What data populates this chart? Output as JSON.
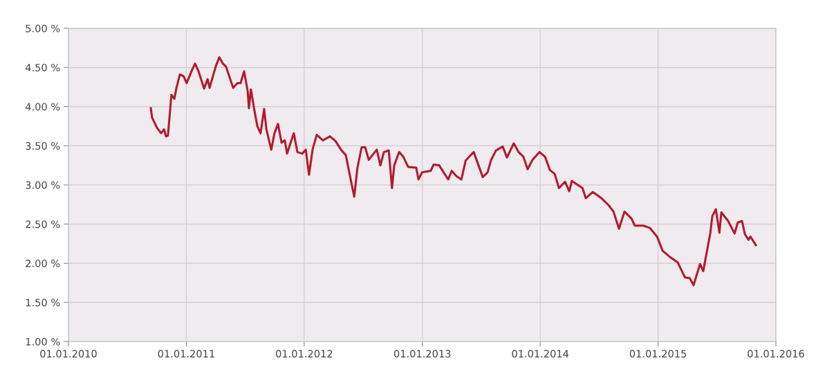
{
  "chart_data": {
    "type": "line",
    "x": [
      "2010-09-13",
      "2010-09-17",
      "2010-10-02",
      "2010-10-15",
      "2010-10-24",
      "2010-10-30",
      "2010-11-05",
      "2010-11-16",
      "2010-11-25",
      "2010-12-01",
      "2010-12-12",
      "2010-12-23",
      "2011-01-02",
      "2011-01-17",
      "2011-01-28",
      "2011-02-08",
      "2011-02-25",
      "2011-03-08",
      "2011-03-14",
      "2011-04-02",
      "2011-04-13",
      "2011-04-24",
      "2011-05-04",
      "2011-05-26",
      "2011-06-08",
      "2011-06-18",
      "2011-06-29",
      "2011-07-10",
      "2011-07-14",
      "2011-07-20",
      "2011-07-31",
      "2011-08-09",
      "2011-08-19",
      "2011-08-30",
      "2011-09-06",
      "2011-09-21",
      "2011-10-01",
      "2011-10-12",
      "2011-10-23",
      "2011-11-02",
      "2011-11-09",
      "2011-11-20",
      "2011-11-30",
      "2011-12-11",
      "2011-12-26",
      "2012-01-06",
      "2012-01-16",
      "2012-01-27",
      "2012-02-09",
      "2012-02-28",
      "2012-03-21",
      "2012-04-07",
      "2012-04-24",
      "2012-05-09",
      "2012-05-24",
      "2012-06-04",
      "2012-06-14",
      "2012-06-27",
      "2012-07-08",
      "2012-07-19",
      "2012-08-03",
      "2012-08-13",
      "2012-08-24",
      "2012-09-04",
      "2012-09-19",
      "2012-09-29",
      "2012-10-06",
      "2012-10-21",
      "2012-11-03",
      "2012-11-18",
      "2012-12-13",
      "2012-12-20",
      "2012-12-31",
      "2013-01-27",
      "2013-02-05",
      "2013-02-22",
      "2013-03-05",
      "2013-03-22",
      "2013-04-02",
      "2013-04-17",
      "2013-05-02",
      "2013-05-15",
      "2013-06-09",
      "2013-06-24",
      "2013-07-07",
      "2013-07-22",
      "2013-08-02",
      "2013-08-17",
      "2013-09-07",
      "2013-09-20",
      "2013-10-11",
      "2013-10-26",
      "2013-11-10",
      "2013-11-23",
      "2013-12-08",
      "2013-12-30",
      "2014-01-16",
      "2014-01-31",
      "2014-02-15",
      "2014-02-28",
      "2014-03-19",
      "2014-04-01",
      "2014-04-09",
      "2014-05-12",
      "2014-05-22",
      "2014-06-13",
      "2014-07-10",
      "2014-08-01",
      "2014-08-16",
      "2014-09-02",
      "2014-09-19",
      "2014-10-11",
      "2014-10-21",
      "2014-11-16",
      "2014-12-07",
      "2014-12-29",
      "2015-01-15",
      "2015-02-10",
      "2015-03-03",
      "2015-03-25",
      "2015-04-09",
      "2015-04-21",
      "2015-05-11",
      "2015-05-21",
      "2015-06-12",
      "2015-06-18",
      "2015-06-29",
      "2015-07-10",
      "2015-07-16",
      "2015-08-06",
      "2015-08-26",
      "2015-09-05",
      "2015-09-18",
      "2015-09-27",
      "2015-10-08",
      "2015-10-14",
      "2015-10-31"
    ],
    "series": [
      {
        "color": "#b3192f",
        "values": [
          3.98,
          3.86,
          3.73,
          3.66,
          3.71,
          3.62,
          3.63,
          4.15,
          4.1,
          4.23,
          4.41,
          4.39,
          4.3,
          4.45,
          4.55,
          4.45,
          4.23,
          4.35,
          4.24,
          4.51,
          4.63,
          4.55,
          4.51,
          4.24,
          4.3,
          4.3,
          4.45,
          4.2,
          3.98,
          4.22,
          3.95,
          3.75,
          3.66,
          3.97,
          3.71,
          3.45,
          3.66,
          3.78,
          3.54,
          3.57,
          3.4,
          3.54,
          3.66,
          3.42,
          3.4,
          3.45,
          3.13,
          3.45,
          3.64,
          3.57,
          3.62,
          3.56,
          3.45,
          3.38,
          3.07,
          2.85,
          3.22,
          3.48,
          3.48,
          3.32,
          3.4,
          3.45,
          3.25,
          3.42,
          3.44,
          2.96,
          3.25,
          3.42,
          3.36,
          3.23,
          3.22,
          3.07,
          3.16,
          3.18,
          3.26,
          3.25,
          3.18,
          3.07,
          3.18,
          3.11,
          3.07,
          3.31,
          3.42,
          3.25,
          3.1,
          3.16,
          3.32,
          3.44,
          3.49,
          3.35,
          3.53,
          3.42,
          3.36,
          3.2,
          3.32,
          3.42,
          3.36,
          3.19,
          3.14,
          2.96,
          3.04,
          2.92,
          3.05,
          2.96,
          2.83,
          2.91,
          2.83,
          2.74,
          2.66,
          2.44,
          2.66,
          2.57,
          2.48,
          2.48,
          2.45,
          2.34,
          2.16,
          2.07,
          2.01,
          1.82,
          1.81,
          1.72,
          1.99,
          1.9,
          2.39,
          2.6,
          2.69,
          2.39,
          2.65,
          2.54,
          2.38,
          2.52,
          2.54,
          2.37,
          2.3,
          2.34,
          2.23
        ]
      }
    ],
    "xlim": [
      "2010-01-01",
      "2016-01-01"
    ],
    "xticks": [
      {
        "value": "2010-01-01",
        "label": "01.01.2010"
      },
      {
        "value": "2011-01-01",
        "label": "01.01.2011"
      },
      {
        "value": "2012-01-01",
        "label": "01.01.2012"
      },
      {
        "value": "2013-01-01",
        "label": "01.01.2013"
      },
      {
        "value": "2014-01-01",
        "label": "01.01.2014"
      },
      {
        "value": "2015-01-01",
        "label": "01.01.2015"
      },
      {
        "value": "2016-01-01",
        "label": "01.01.2016"
      }
    ],
    "ylim": [
      1,
      5
    ],
    "yticks": [
      {
        "value": 1,
        "label": "1.00 %"
      },
      {
        "value": 1.5,
        "label": "1.50 %"
      },
      {
        "value": 2,
        "label": "2.00 %"
      },
      {
        "value": 2.5,
        "label": "2.50 %"
      },
      {
        "value": 3,
        "label": "3.00 %"
      },
      {
        "value": 3.5,
        "label": "3.50 %"
      },
      {
        "value": 4,
        "label": "4.00 %"
      },
      {
        "value": 4.5,
        "label": "4.50 %"
      },
      {
        "value": 5,
        "label": "5.00 %"
      }
    ],
    "grid": true,
    "marker": "none",
    "line_style": "solid"
  }
}
